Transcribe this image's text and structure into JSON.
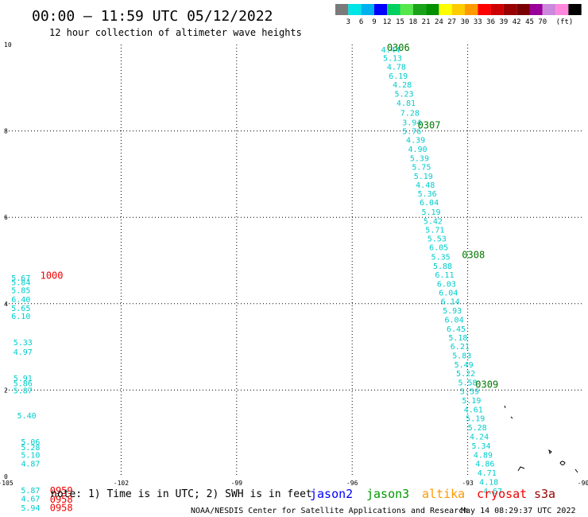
{
  "header": {
    "title": "00:00 – 11:59 UTC 05/12/2022",
    "subtitle": "12 hour collection of altimeter wave heights"
  },
  "colorbar": {
    "colors": [
      "#7a7a7a",
      "#00e5e5",
      "#00b0f0",
      "#0000ff",
      "#00d060",
      "#54e84a",
      "#1aa31a",
      "#009000",
      "#ffff00",
      "#ffcc00",
      "#ff9900",
      "#ff0000",
      "#cc0000",
      "#990000",
      "#7a0000",
      "#990099",
      "#cc88dd",
      "#ff88dd",
      "#000000"
    ],
    "labels": [
      "3",
      "6",
      "9",
      "12",
      "15",
      "18",
      "21",
      "24",
      "27",
      "30",
      "33",
      "36",
      "39",
      "42",
      "45",
      "70",
      "(ft)"
    ]
  },
  "chart_data": {
    "type": "scatter",
    "xlim": [
      -105,
      -90
    ],
    "ylim": [
      0,
      10
    ],
    "x_ticks": [
      "-105",
      "-102",
      "-99",
      "-96",
      "-93",
      "-90"
    ],
    "y_ticks": [
      "0",
      "2",
      "4",
      "6",
      "8",
      "10"
    ],
    "grid": true,
    "series": [
      {
        "label_color": "#00cccc",
        "points": [
          {
            "x": -95.25,
            "y": 9.89,
            "v": "4.44"
          },
          {
            "x": -95.2,
            "y": 9.7,
            "v": "5.13"
          },
          {
            "x": -95.1,
            "y": 9.49,
            "v": "4.78"
          },
          {
            "x": -95.05,
            "y": 9.28,
            "v": "6.19"
          },
          {
            "x": -94.95,
            "y": 9.08,
            "v": "4.28"
          },
          {
            "x": -94.9,
            "y": 8.87,
            "v": "5.23"
          },
          {
            "x": -94.85,
            "y": 8.66,
            "v": "4.81"
          },
          {
            "x": -94.75,
            "y": 8.43,
            "v": "7.28"
          },
          {
            "x": -94.7,
            "y": 8.2,
            "v": "3.94"
          },
          {
            "x": -94.7,
            "y": 8.0,
            "v": "5.76"
          },
          {
            "x": -94.6,
            "y": 7.8,
            "v": "4.39"
          },
          {
            "x": -94.55,
            "y": 7.59,
            "v": "4.90"
          },
          {
            "x": -94.5,
            "y": 7.38,
            "v": "5.39"
          },
          {
            "x": -94.45,
            "y": 7.17,
            "v": "5.75"
          },
          {
            "x": -94.4,
            "y": 6.96,
            "v": "5.19"
          },
          {
            "x": -94.35,
            "y": 6.76,
            "v": "4.48"
          },
          {
            "x": -94.3,
            "y": 6.56,
            "v": "5.36"
          },
          {
            "x": -94.25,
            "y": 6.35,
            "v": "6.04"
          },
          {
            "x": -94.2,
            "y": 6.13,
            "v": "5.19"
          },
          {
            "x": -94.15,
            "y": 5.92,
            "v": "5.42"
          },
          {
            "x": -94.1,
            "y": 5.72,
            "v": "5.71"
          },
          {
            "x": -94.05,
            "y": 5.52,
            "v": "5.53"
          },
          {
            "x": -94.0,
            "y": 5.31,
            "v": "6.05"
          },
          {
            "x": -93.95,
            "y": 5.09,
            "v": "5.35"
          },
          {
            "x": -93.9,
            "y": 4.88,
            "v": "5.88"
          },
          {
            "x": -93.85,
            "y": 4.68,
            "v": "6.11"
          },
          {
            "x": -93.8,
            "y": 4.47,
            "v": "6.03"
          },
          {
            "x": -93.75,
            "y": 4.26,
            "v": "6.04"
          },
          {
            "x": -93.7,
            "y": 4.06,
            "v": "6.14"
          },
          {
            "x": -93.65,
            "y": 3.85,
            "v": "5.93"
          },
          {
            "x": -93.6,
            "y": 3.64,
            "v": "6.04"
          },
          {
            "x": -93.55,
            "y": 3.43,
            "v": "6.45"
          },
          {
            "x": -93.5,
            "y": 3.22,
            "v": "5.18"
          },
          {
            "x": -93.45,
            "y": 3.02,
            "v": "6.21"
          },
          {
            "x": -93.4,
            "y": 2.81,
            "v": "5.83"
          },
          {
            "x": -93.35,
            "y": 2.6,
            "v": "5.49"
          },
          {
            "x": -93.3,
            "y": 2.39,
            "v": "5.22"
          },
          {
            "x": -93.25,
            "y": 2.18,
            "v": "5.58"
          },
          {
            "x": -93.2,
            "y": 1.98,
            "v": "5.59"
          },
          {
            "x": -93.15,
            "y": 1.77,
            "v": "5.19"
          },
          {
            "x": -93.1,
            "y": 1.56,
            "v": "4.61"
          },
          {
            "x": -93.05,
            "y": 1.35,
            "v": "5.19"
          },
          {
            "x": -93.0,
            "y": 1.14,
            "v": "5.28"
          },
          {
            "x": -92.95,
            "y": 0.93,
            "v": "4.24"
          },
          {
            "x": -92.9,
            "y": 0.72,
            "v": "5.34"
          },
          {
            "x": -92.85,
            "y": 0.51,
            "v": "4.89"
          },
          {
            "x": -92.8,
            "y": 0.3,
            "v": "4.86"
          },
          {
            "x": -92.75,
            "y": 0.09,
            "v": "4.71"
          },
          {
            "x": -92.7,
            "y": -0.12,
            "v": "4.18"
          },
          {
            "x": -92.6,
            "y": -0.33,
            "v": "4.67"
          }
        ]
      },
      {
        "label_color": "#00cccc",
        "points": [
          {
            "x": -104.85,
            "y": 4.6,
            "v": "5.67"
          },
          {
            "x": -104.85,
            "y": 4.5,
            "v": "5.84"
          },
          {
            "x": -104.85,
            "y": 4.32,
            "v": "5.85"
          },
          {
            "x": -104.85,
            "y": 4.11,
            "v": "6.40"
          },
          {
            "x": -104.85,
            "y": 3.9,
            "v": "5.65"
          },
          {
            "x": -104.85,
            "y": 3.72,
            "v": "6.10"
          },
          {
            "x": -104.8,
            "y": 3.11,
            "v": "5.33"
          },
          {
            "x": -104.8,
            "y": 2.89,
            "v": "4.97"
          },
          {
            "x": -104.8,
            "y": 2.28,
            "v": "5.91"
          },
          {
            "x": -104.8,
            "y": 2.16,
            "v": "5.86"
          },
          {
            "x": -104.8,
            "y": 2.0,
            "v": "5.87"
          },
          {
            "x": -104.7,
            "y": 1.42,
            "v": "5.40"
          },
          {
            "x": -104.6,
            "y": 0.81,
            "v": "5.06"
          },
          {
            "x": -104.6,
            "y": 0.68,
            "v": "5.28"
          },
          {
            "x": -104.6,
            "y": 0.51,
            "v": "5.10"
          },
          {
            "x": -104.6,
            "y": 0.3,
            "v": "4.87"
          },
          {
            "x": -104.6,
            "y": -0.31,
            "v": "5.87"
          },
          {
            "x": -104.6,
            "y": -0.51,
            "v": "4.67"
          },
          {
            "x": -104.6,
            "y": -0.72,
            "v": "5.94"
          }
        ]
      }
    ],
    "time_labels": [
      {
        "x": -95.1,
        "y": 9.93,
        "t": "0306",
        "color": "#007700"
      },
      {
        "x": -94.3,
        "y": 8.13,
        "t": "0307",
        "color": "#007700"
      },
      {
        "x": -93.15,
        "y": 5.13,
        "t": "0308",
        "color": "#007700"
      },
      {
        "x": -92.8,
        "y": 2.13,
        "t": "0309",
        "color": "#007700"
      },
      {
        "x": -104.1,
        "y": 4.65,
        "t": "1000",
        "color": "#ee0000"
      },
      {
        "x": -103.85,
        "y": -0.33,
        "t": "0959",
        "color": "#ee0000"
      },
      {
        "x": -103.85,
        "y": -0.53,
        "t": "0958",
        "color": "#ee0000"
      },
      {
        "x": -103.85,
        "y": -0.73,
        "t": "0958",
        "color": "#ee0000"
      }
    ]
  },
  "footer": {
    "note": "note: 1) Time is in UTC; 2) SWH is in feet",
    "legend": [
      {
        "name": "jason2",
        "color": "#0000ff"
      },
      {
        "name": "jason3",
        "color": "#009900"
      },
      {
        "name": "altika",
        "color": "#ff9900"
      },
      {
        "name": "cryosat",
        "color": "#ee0000"
      },
      {
        "name": "s3a",
        "color": "#990000"
      }
    ],
    "credit": "NOAA/NESDIS Center for Satellite Applications and Research",
    "timestamp": "May 14 08:29:37 UTC 2022"
  }
}
